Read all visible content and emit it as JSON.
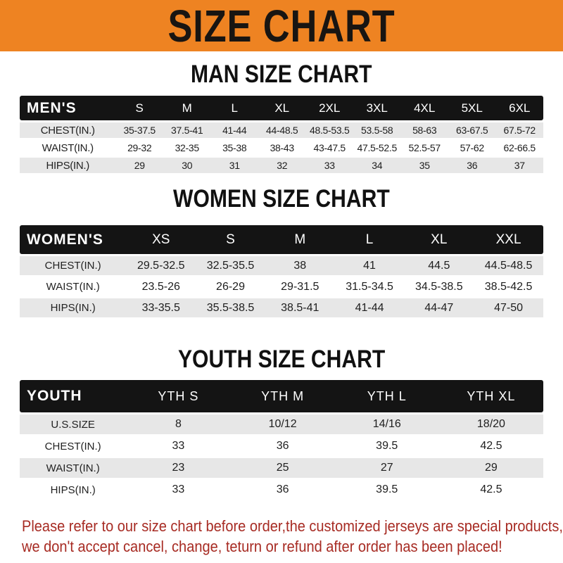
{
  "banner": {
    "title": "SIZE CHART"
  },
  "colors": {
    "banner_bg": "#EE8322",
    "bar_bg": "#141414",
    "bar_text": "#FFFFFF",
    "stripe": "#E7E7E7",
    "note_text": "#A72B23"
  },
  "chart_data": [
    {
      "type": "table",
      "title": "MAN SIZE CHART",
      "header_label": "MEN'S",
      "columns": [
        "S",
        "M",
        "L",
        "XL",
        "2XL",
        "3XL",
        "4XL",
        "5XL",
        "6XL"
      ],
      "rows": [
        {
          "label": "CHEST(IN.)",
          "values": [
            "35-37.5",
            "37.5-41",
            "41-44",
            "44-48.5",
            "48.5-53.5",
            "53.5-58",
            "58-63",
            "63-67.5",
            "67.5-72"
          ]
        },
        {
          "label": "WAIST(IN.)",
          "values": [
            "29-32",
            "32-35",
            "35-38",
            "38-43",
            "43-47.5",
            "47.5-52.5",
            "52.5-57",
            "57-62",
            "62-66.5"
          ]
        },
        {
          "label": "HIPS(IN.)",
          "values": [
            "29",
            "30",
            "31",
            "32",
            "33",
            "34",
            "35",
            "36",
            "37"
          ]
        }
      ]
    },
    {
      "type": "table",
      "title": "WOMEN SIZE CHART",
      "header_label": "WOMEN'S",
      "columns": [
        "XS",
        "S",
        "M",
        "L",
        "XL",
        "XXL"
      ],
      "rows": [
        {
          "label": "CHEST(IN.)",
          "values": [
            "29.5-32.5",
            "32.5-35.5",
            "38",
            "41",
            "44.5",
            "44.5-48.5"
          ]
        },
        {
          "label": "WAIST(IN.)",
          "values": [
            "23.5-26",
            "26-29",
            "29-31.5",
            "31.5-34.5",
            "34.5-38.5",
            "38.5-42.5"
          ]
        },
        {
          "label": "HIPS(IN.)",
          "values": [
            "33-35.5",
            "35.5-38.5",
            "38.5-41",
            "41-44",
            "44-47",
            "47-50"
          ]
        }
      ]
    },
    {
      "type": "table",
      "title": "YOUTH SIZE CHART",
      "header_label": "YOUTH",
      "columns": [
        "YTH S",
        "YTH M",
        "YTH L",
        "YTH XL"
      ],
      "rows": [
        {
          "label": "U.S.SIZE",
          "values": [
            "8",
            "10/12",
            "14/16",
            "18/20"
          ]
        },
        {
          "label": "CHEST(IN.)",
          "values": [
            "33",
            "36",
            "39.5",
            "42.5"
          ]
        },
        {
          "label": "WAIST(IN.)",
          "values": [
            "23",
            "25",
            "27",
            "29"
          ]
        },
        {
          "label": "HIPS(IN.)",
          "values": [
            "33",
            "36",
            "39.5",
            "42.5"
          ]
        }
      ]
    }
  ],
  "note": {
    "line1": "Please refer to our size chart before order,the customized jerseys are special products,",
    "line2": "we don't accept cancel, change, teturn or refund after order has been placed!"
  }
}
